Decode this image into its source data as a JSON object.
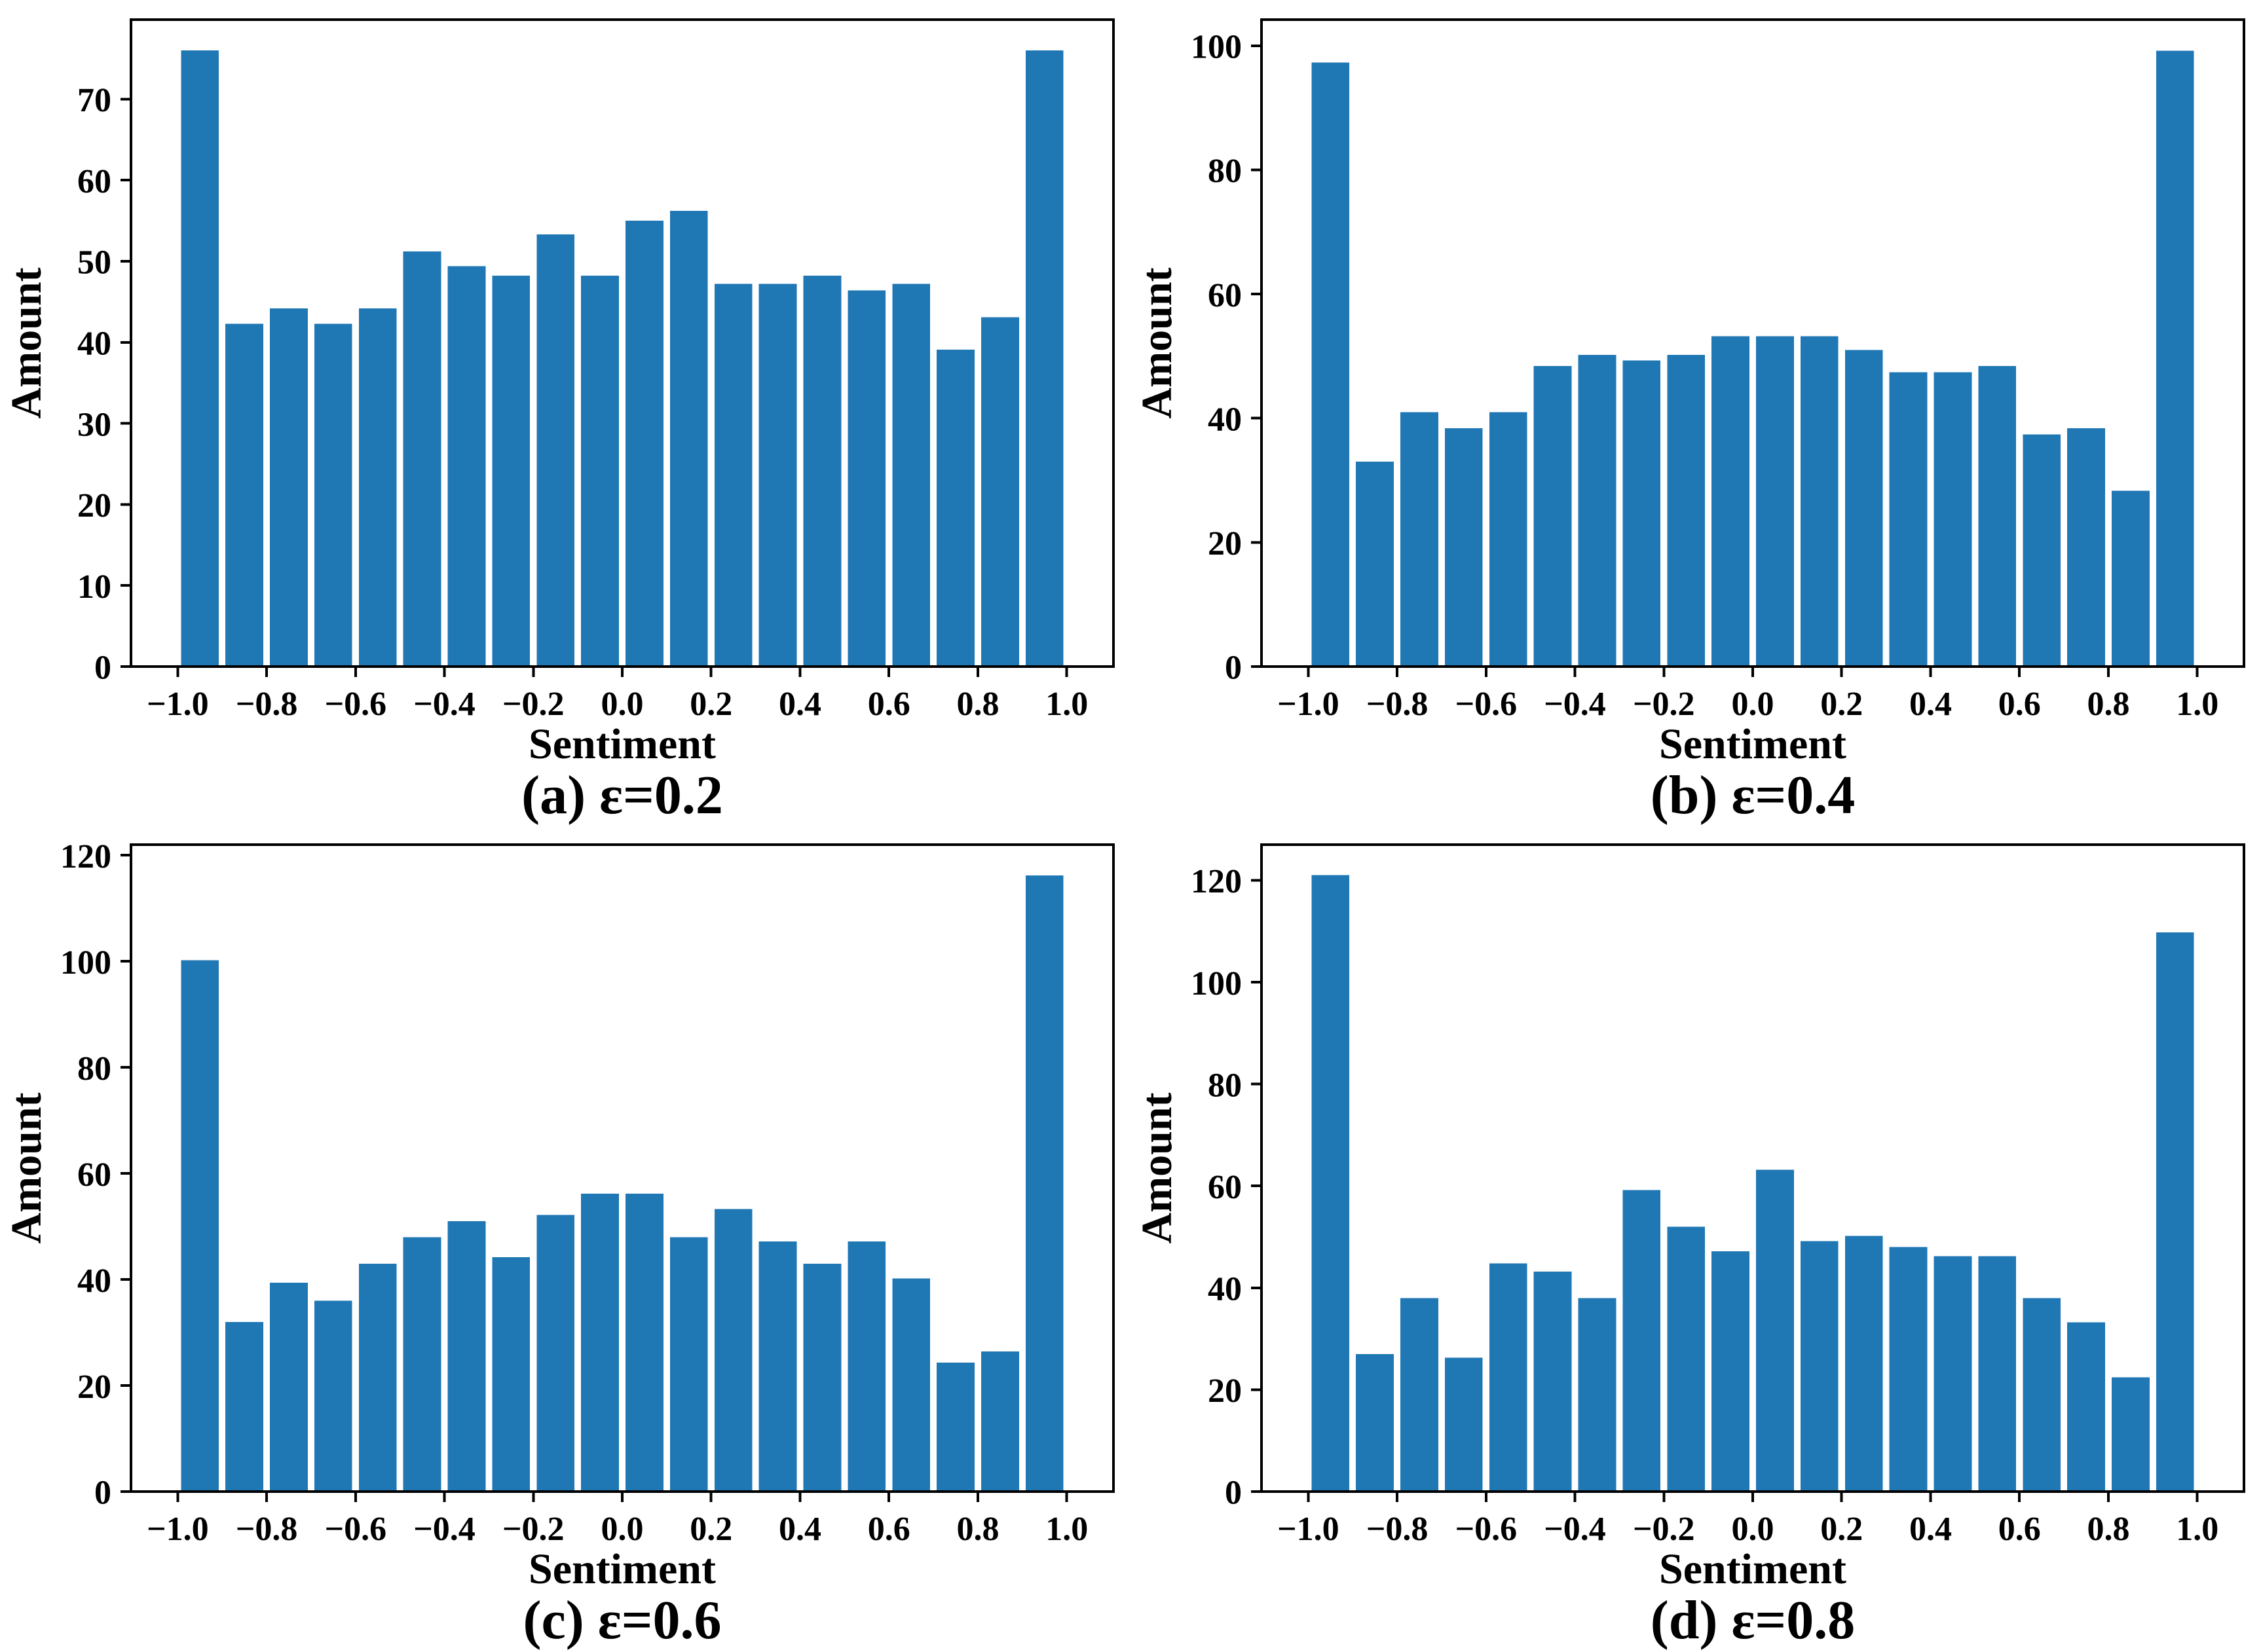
{
  "page": {
    "background": "#ffffff",
    "text_color": "#000000"
  },
  "chart_data": [
    {
      "id": "a",
      "type": "bar",
      "caption": "(a) ε=0.2",
      "xlabel": "Sentiment",
      "ylabel": "Amount",
      "bar_color": "#1f77b4",
      "grid": false,
      "legend": null,
      "x": [
        -0.95,
        -0.85,
        -0.75,
        -0.65,
        -0.55,
        -0.45,
        -0.35,
        -0.25,
        -0.15,
        -0.05,
        0.05,
        0.15,
        0.25,
        0.35,
        0.45,
        0.55,
        0.65,
        0.75,
        0.85,
        0.95
      ],
      "values": [
        76,
        42.3,
        44.2,
        42.3,
        44.2,
        51.2,
        49.4,
        48.2,
        53.3,
        48.2,
        55,
        56.2,
        47.2,
        47.2,
        48.2,
        46.4,
        47.2,
        39.1,
        43.1,
        76
      ],
      "bin_width": 0.1,
      "bar_width": 0.085,
      "xlim": [
        -1.105,
        1.105
      ],
      "ylim": [
        0,
        79.8
      ],
      "xticks": [
        -1.0,
        -0.8,
        -0.6,
        -0.4,
        -0.2,
        0.0,
        0.2,
        0.4,
        0.6,
        0.8,
        1.0
      ],
      "xtick_labels": [
        "−1.0",
        "−0.8",
        "−0.6",
        "−0.4",
        "−0.2",
        "0.0",
        "0.2",
        "0.4",
        "0.6",
        "0.8",
        "1.0"
      ],
      "yticks": [
        0,
        10,
        20,
        30,
        40,
        50,
        60,
        70
      ],
      "ytick_labels": [
        "0",
        "10",
        "20",
        "30",
        "40",
        "50",
        "60",
        "70"
      ]
    },
    {
      "id": "b",
      "type": "bar",
      "caption": "(b) ε=0.4",
      "xlabel": "Sentiment",
      "ylabel": "Amount",
      "bar_color": "#1f77b4",
      "grid": false,
      "legend": null,
      "x": [
        -0.95,
        -0.85,
        -0.75,
        -0.65,
        -0.55,
        -0.45,
        -0.35,
        -0.25,
        -0.15,
        -0.05,
        0.05,
        0.15,
        0.25,
        0.35,
        0.45,
        0.55,
        0.65,
        0.75,
        0.85,
        0.95
      ],
      "values": [
        97.3,
        33,
        41,
        38.4,
        41,
        48.4,
        50.2,
        49.3,
        50.2,
        53.2,
        53.2,
        53.2,
        51,
        47.4,
        47.4,
        48.4,
        37.4,
        38.4,
        28.3,
        99.2
      ],
      "bin_width": 0.1,
      "bar_width": 0.085,
      "xlim": [
        -1.105,
        1.105
      ],
      "ylim": [
        0,
        104.2
      ],
      "xticks": [
        -1.0,
        -0.8,
        -0.6,
        -0.4,
        -0.2,
        0.0,
        0.2,
        0.4,
        0.6,
        0.8,
        1.0
      ],
      "xtick_labels": [
        "−1.0",
        "−0.8",
        "−0.6",
        "−0.4",
        "−0.2",
        "0.0",
        "0.2",
        "0.4",
        "0.6",
        "0.8",
        "1.0"
      ],
      "yticks": [
        0,
        20,
        40,
        60,
        80,
        100
      ],
      "ytick_labels": [
        "0",
        "20",
        "40",
        "60",
        "80",
        "100"
      ]
    },
    {
      "id": "c",
      "type": "bar",
      "caption": "(c) ε=0.6",
      "xlabel": "Sentiment",
      "ylabel": "Amount",
      "bar_color": "#1f77b4",
      "grid": false,
      "legend": null,
      "x": [
        -0.95,
        -0.85,
        -0.75,
        -0.65,
        -0.55,
        -0.45,
        -0.35,
        -0.25,
        -0.15,
        -0.05,
        0.05,
        0.15,
        0.25,
        0.35,
        0.45,
        0.55,
        0.65,
        0.75,
        0.85,
        0.95
      ],
      "values": [
        100.2,
        32,
        39.4,
        36,
        43,
        48,
        51,
        44.2,
        52.2,
        56.2,
        56.2,
        48,
        53.3,
        47.2,
        43,
        47.2,
        40.2,
        24.3,
        26.4,
        116.2
      ],
      "bin_width": 0.1,
      "bar_width": 0.085,
      "xlim": [
        -1.105,
        1.105
      ],
      "ylim": [
        0,
        122
      ],
      "xticks": [
        -1.0,
        -0.8,
        -0.6,
        -0.4,
        -0.2,
        0.0,
        0.2,
        0.4,
        0.6,
        0.8,
        1.0
      ],
      "xtick_labels": [
        "−1.0",
        "−0.8",
        "−0.6",
        "−0.4",
        "−0.2",
        "0.0",
        "0.2",
        "0.4",
        "0.6",
        "0.8",
        "1.0"
      ],
      "yticks": [
        0,
        20,
        40,
        60,
        80,
        100,
        120
      ],
      "ytick_labels": [
        "0",
        "20",
        "40",
        "60",
        "80",
        "100",
        "120"
      ]
    },
    {
      "id": "d",
      "type": "bar",
      "caption": "(d) ε=0.8",
      "xlabel": "Sentiment",
      "ylabel": "Amount",
      "bar_color": "#1f77b4",
      "grid": false,
      "legend": null,
      "x": [
        -0.95,
        -0.85,
        -0.75,
        -0.65,
        -0.55,
        -0.45,
        -0.35,
        -0.25,
        -0.15,
        -0.05,
        0.05,
        0.15,
        0.25,
        0.35,
        0.45,
        0.55,
        0.65,
        0.75,
        0.85,
        0.95
      ],
      "values": [
        121,
        27,
        38,
        26.3,
        44.8,
        43.2,
        38,
        59.2,
        52,
        47.2,
        63.2,
        49.2,
        50.2,
        48,
        46.2,
        46.2,
        38,
        33.2,
        22.4,
        109.8
      ],
      "bin_width": 0.1,
      "bar_width": 0.085,
      "xlim": [
        -1.105,
        1.105
      ],
      "ylim": [
        0,
        127
      ],
      "xticks": [
        -1.0,
        -0.8,
        -0.6,
        -0.4,
        -0.2,
        0.0,
        0.2,
        0.4,
        0.6,
        0.8,
        1.0
      ],
      "xtick_labels": [
        "−1.0",
        "−0.8",
        "−0.6",
        "−0.4",
        "−0.2",
        "0.0",
        "0.2",
        "0.4",
        "0.6",
        "0.8",
        "1.0"
      ],
      "yticks": [
        0,
        20,
        40,
        60,
        80,
        100,
        120
      ],
      "ytick_labels": [
        "0",
        "20",
        "40",
        "60",
        "80",
        "100",
        "120"
      ]
    }
  ]
}
